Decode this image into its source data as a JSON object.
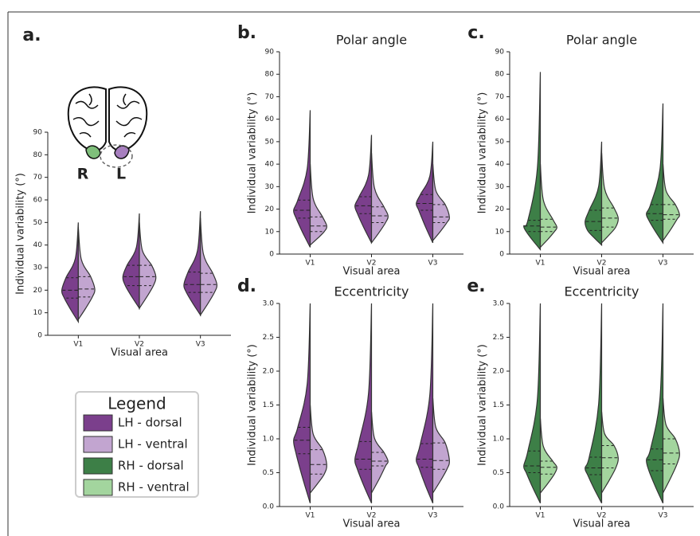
{
  "chart_data": [
    {
      "type": "split-violin",
      "panel_label": "a.",
      "x_label": "Visual area",
      "y_label": "Individual variability (°)",
      "categories": [
        "V1",
        "V2",
        "V3"
      ],
      "ylim": [
        0,
        90
      ],
      "yticks": [
        0,
        10,
        20,
        30,
        40,
        50,
        60,
        70,
        80,
        90
      ],
      "annotations": [
        "R",
        "L"
      ],
      "series": [
        {
          "color": "#7b3f8c",
          "values": [
            {
              "min": 6,
              "q1": 16.5,
              "median": 20,
              "q3": 25.5,
              "max": 50
            },
            {
              "min": 12,
              "q1": 22,
              "median": 26,
              "q3": 31,
              "max": 54
            },
            {
              "min": 9,
              "q1": 19,
              "median": 22.5,
              "q3": 28,
              "max": 55
            }
          ]
        },
        {
          "color": "#c2a5d0",
          "values": [
            {
              "min": 7,
              "q1": 17,
              "median": 20.5,
              "q3": 26,
              "max": 48
            },
            {
              "min": 12,
              "q1": 22,
              "median": 26,
              "q3": 31,
              "max": 50
            },
            {
              "min": 9,
              "q1": 19,
              "median": 22.5,
              "q3": 27.5,
              "max": 52
            }
          ]
        }
      ]
    },
    {
      "type": "split-violin",
      "panel_label": "b.",
      "title": "Polar angle",
      "x_label": "Visual area",
      "y_label": "Individual variability (°)",
      "categories": [
        "V1",
        "V2",
        "V3"
      ],
      "ylim": [
        0,
        90
      ],
      "yticks": [
        0,
        10,
        20,
        30,
        40,
        50,
        60,
        70,
        80,
        90
      ],
      "series": [
        {
          "color": "#7b3f8c",
          "values": [
            {
              "min": 3,
              "q1": 16,
              "median": 19.5,
              "q3": 24,
              "max": 64
            },
            {
              "min": 5,
              "q1": 18,
              "median": 21.5,
              "q3": 25.5,
              "max": 53
            },
            {
              "min": 5,
              "q1": 19.5,
              "median": 22.5,
              "q3": 26.5,
              "max": 50
            }
          ]
        },
        {
          "color": "#c2a5d0",
          "values": [
            {
              "min": 4,
              "q1": 10,
              "median": 12.5,
              "q3": 16.5,
              "max": 40
            },
            {
              "min": 5,
              "q1": 14,
              "median": 17,
              "q3": 21,
              "max": 45
            },
            {
              "min": 6,
              "q1": 14,
              "median": 16.5,
              "q3": 22,
              "max": 40
            }
          ]
        }
      ]
    },
    {
      "type": "split-violin",
      "panel_label": "c.",
      "title": "Polar angle",
      "x_label": "Visual area",
      "y_label": "Individual variability (°)",
      "categories": [
        "V1",
        "V2",
        "V3"
      ],
      "ylim": [
        0,
        90
      ],
      "yticks": [
        0,
        10,
        20,
        30,
        40,
        50,
        60,
        70,
        80,
        90
      ],
      "series": [
        {
          "color": "#3d7f47",
          "values": [
            {
              "min": 2,
              "q1": 10,
              "median": 12.5,
              "q3": 15,
              "max": 81
            },
            {
              "min": 4,
              "q1": 10.5,
              "median": 14.5,
              "q3": 19.5,
              "max": 50
            },
            {
              "min": 5,
              "q1": 15,
              "median": 18,
              "q3": 22,
              "max": 67
            }
          ]
        },
        {
          "color": "#a3d59e",
          "values": [
            {
              "min": 3,
              "q1": 10,
              "median": 12,
              "q3": 15.5,
              "max": 40
            },
            {
              "min": 5,
              "q1": 12,
              "median": 16,
              "q3": 20.5,
              "max": 45
            },
            {
              "min": 6,
              "q1": 15.5,
              "median": 17.5,
              "q3": 22,
              "max": 40
            }
          ]
        }
      ]
    },
    {
      "type": "split-violin",
      "panel_label": "d.",
      "title": "Eccentricity",
      "x_label": "Visual area",
      "y_label": "Individual variability (°)",
      "categories": [
        "V1",
        "V2",
        "V3"
      ],
      "ylim": [
        0,
        3
      ],
      "yticks": [
        {
          "value": 0,
          "label": "0.0"
        },
        0.5,
        {
          "value": 1,
          "label": "1.0"
        },
        1.5,
        {
          "value": 2,
          "label": "2.0"
        },
        2.5,
        {
          "value": 3,
          "label": "3.0"
        }
      ],
      "series": [
        {
          "color": "#7b3f8c",
          "values": [
            {
              "min": 0.05,
              "q1": 0.78,
              "median": 0.98,
              "q3": 1.17,
              "max": 3
            },
            {
              "min": 0.05,
              "q1": 0.55,
              "median": 0.7,
              "q3": 0.96,
              "max": 3
            },
            {
              "min": 0.05,
              "q1": 0.58,
              "median": 0.7,
              "q3": 0.93,
              "max": 3
            }
          ]
        },
        {
          "color": "#c2a5d0",
          "values": [
            {
              "min": 0.2,
              "q1": 0.48,
              "median": 0.62,
              "q3": 0.84,
              "max": 1.5
            },
            {
              "min": 0.2,
              "q1": 0.6,
              "median": 0.67,
              "q3": 0.8,
              "max": 1.4
            },
            {
              "min": 0.2,
              "q1": 0.55,
              "median": 0.68,
              "q3": 0.94,
              "max": 1.6
            }
          ]
        }
      ]
    },
    {
      "type": "split-violin",
      "panel_label": "e.",
      "title": "Eccentricity",
      "x_label": "Visual area",
      "y_label": "Individual variability (°)",
      "categories": [
        "V1",
        "V2",
        "V3"
      ],
      "ylim": [
        0,
        3
      ],
      "yticks": [
        {
          "value": 0,
          "label": "0.0"
        },
        0.5,
        {
          "value": 1,
          "label": "1.0"
        },
        1.5,
        {
          "value": 2,
          "label": "2.0"
        },
        2.5,
        {
          "value": 3,
          "label": "3.0"
        }
      ],
      "series": [
        {
          "color": "#3d7f47",
          "values": [
            {
              "min": 0.05,
              "q1": 0.5,
              "median": 0.6,
              "q3": 0.82,
              "max": 3
            },
            {
              "min": 0.05,
              "q1": 0.47,
              "median": 0.57,
              "q3": 0.73,
              "max": 3
            },
            {
              "min": 0.05,
              "q1": 0.53,
              "median": 0.69,
              "q3": 0.85,
              "max": 3
            }
          ]
        },
        {
          "color": "#a3d59e",
          "values": [
            {
              "min": 0.2,
              "q1": 0.48,
              "median": 0.58,
              "q3": 0.67,
              "max": 1.3
            },
            {
              "min": 0.2,
              "q1": 0.57,
              "median": 0.72,
              "q3": 0.9,
              "max": 1.4
            },
            {
              "min": 0.2,
              "q1": 0.63,
              "median": 0.79,
              "q3": 1,
              "max": 1.6
            }
          ]
        }
      ]
    }
  ],
  "legend": {
    "title": "Legend",
    "items": [
      {
        "name": "LH - dorsal",
        "color": "#7b3f8c"
      },
      {
        "name": "LH - ventral",
        "color": "#c2a5d0"
      },
      {
        "name": "RH - dorsal",
        "color": "#3d7f47"
      },
      {
        "name": "RH - ventral",
        "color": "#a3d59e"
      }
    ]
  }
}
